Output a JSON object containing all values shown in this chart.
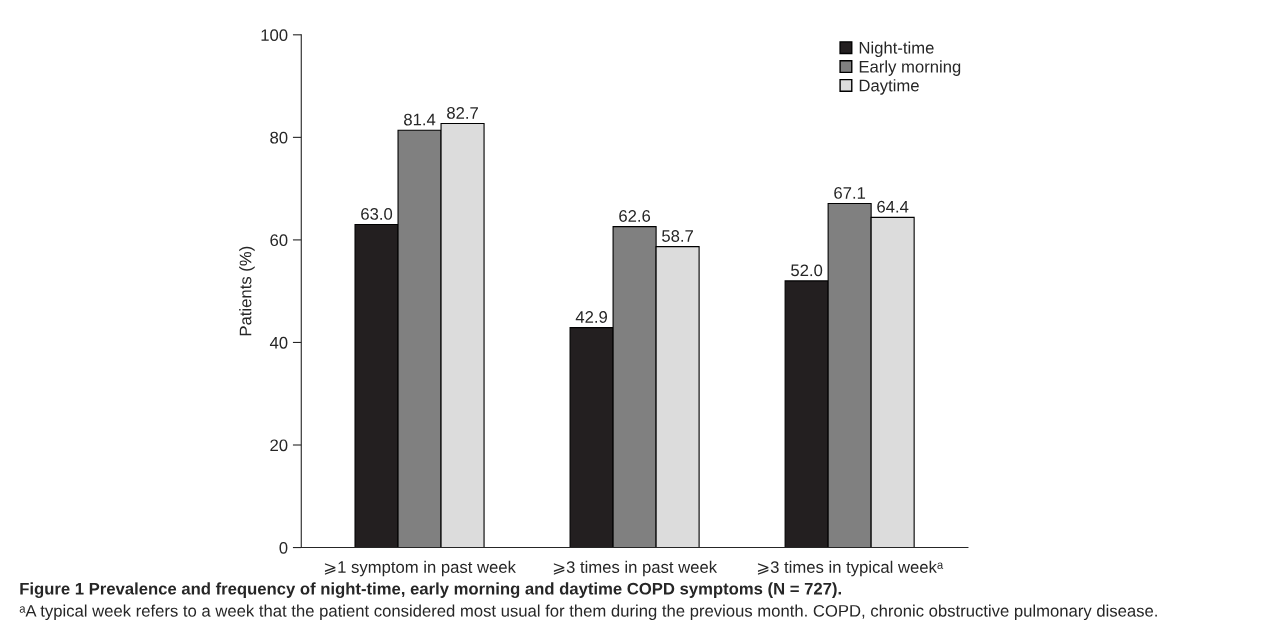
{
  "chart_data": {
    "type": "bar",
    "title": "Figure 1 Prevalence and frequency of night-time, early morning and daytime COPD symptoms (N = 727).",
    "annotations": [
      "ᵃA typical week refers to a week that the patient considered most usual for them during the previous month. COPD, chronic obstructive pulmonary disease."
    ],
    "ylabel": "Patients (%)",
    "categories": [
      "⩾1 symptom in past week",
      "⩾3 times in past week",
      "⩾3 times in typical weekᵃ"
    ],
    "series": [
      {
        "name": "Night-time",
        "color": "#231f20",
        "values": [
          63.0,
          42.9,
          52.0
        ],
        "value_labels": [
          "63.0",
          "42.9",
          "52.0"
        ]
      },
      {
        "name": "Early morning",
        "color": "#808080",
        "values": [
          81.4,
          62.6,
          67.1
        ],
        "value_labels": [
          "81.4",
          "62.6",
          "67.1"
        ]
      },
      {
        "name": "Daytime",
        "color": "#dcdcdc",
        "values": [
          82.7,
          58.7,
          64.4
        ],
        "value_labels": [
          "82.7",
          "58.7",
          "64.4"
        ]
      }
    ],
    "ylim": [
      0,
      100
    ],
    "yticks": [
      0,
      20,
      40,
      60,
      80,
      100
    ],
    "legend": "top right",
    "grid": false
  }
}
